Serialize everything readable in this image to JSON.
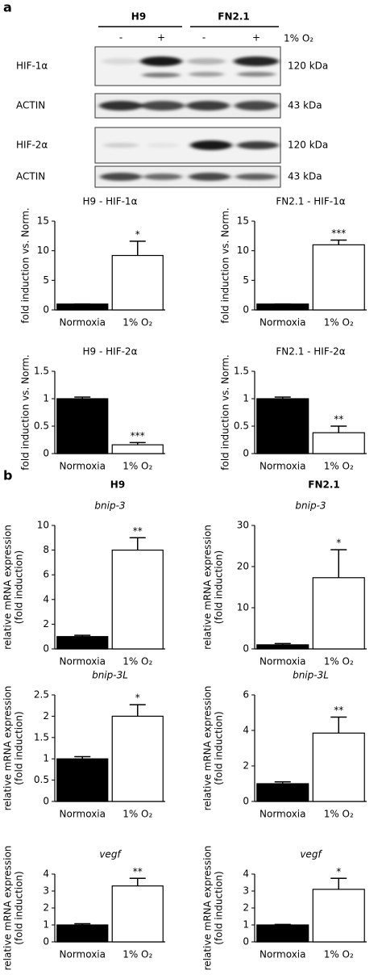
{
  "blot": {
    "panel_label": "a",
    "groups": [
      "H9",
      "FN2.1"
    ],
    "lanes": [
      "-",
      "+",
      "-",
      "+"
    ],
    "condition": "1% O₂",
    "rows": [
      {
        "label": "HIF-1α",
        "size": "120 kDa"
      },
      {
        "label": "ACTIN",
        "size": "43 kDa"
      },
      {
        "label": "HIF-2α",
        "size": "120 kDa"
      },
      {
        "label": "ACTIN",
        "size": "43 kDa"
      }
    ]
  },
  "panel_b": {
    "panel_label": "b",
    "columns": [
      "H9",
      "FN2.1"
    ]
  },
  "chart_data": [
    {
      "type": "bar",
      "title": "H9 - HIF-1α",
      "title_style": "normal",
      "ylabel": [
        "fold induction vs. Norm."
      ],
      "categories": [
        "Normoxia",
        "1% O₂"
      ],
      "values": [
        1,
        9.2
      ],
      "errors": [
        0,
        2.4
      ],
      "colors": [
        "#000000",
        "#ffffff"
      ],
      "annotation": "*",
      "ylim": [
        0,
        15
      ],
      "yticks": [
        0,
        5,
        10,
        15
      ]
    },
    {
      "type": "bar",
      "title": "FN2.1 - HIF-1α",
      "title_style": "normal",
      "ylabel": [
        "fold induction vs. Norm."
      ],
      "categories": [
        "Normoxia",
        "1% O₂"
      ],
      "values": [
        1,
        11
      ],
      "errors": [
        0,
        0.8
      ],
      "colors": [
        "#000000",
        "#ffffff"
      ],
      "annotation": "***",
      "ylim": [
        0,
        15
      ],
      "yticks": [
        0,
        5,
        10,
        15
      ]
    },
    {
      "type": "bar",
      "title": "H9 - HIF-2α",
      "title_style": "normal",
      "ylabel": [
        "fold induction vs. Norm."
      ],
      "categories": [
        "Normoxia",
        "1% O₂"
      ],
      "values": [
        1,
        0.16
      ],
      "errors": [
        0.03,
        0.04
      ],
      "colors": [
        "#000000",
        "#ffffff"
      ],
      "annotation": "***",
      "ylim": [
        0,
        1.5
      ],
      "yticks": [
        0,
        0.5,
        1,
        1.5
      ]
    },
    {
      "type": "bar",
      "title": "FN2.1 - HIF-2α",
      "title_style": "normal",
      "ylabel": [
        "fold induction vs. Norm."
      ],
      "categories": [
        "Normoxia",
        "1% O₂"
      ],
      "values": [
        1,
        0.38
      ],
      "errors": [
        0.03,
        0.12
      ],
      "colors": [
        "#000000",
        "#ffffff"
      ],
      "annotation": "**",
      "ylim": [
        0,
        1.5
      ],
      "yticks": [
        0,
        0.5,
        1,
        1.5
      ]
    },
    {
      "type": "bar",
      "title": "bnip-3",
      "title_style": "italic",
      "ylabel": [
        "relative mRNA expression",
        "(fold induction)"
      ],
      "categories": [
        "Normoxia",
        "1% O₂"
      ],
      "values": [
        1,
        8
      ],
      "errors": [
        0.1,
        1
      ],
      "colors": [
        "#000000",
        "#ffffff"
      ],
      "annotation": "**",
      "ylim": [
        0,
        10
      ],
      "yticks": [
        0,
        2,
        4,
        6,
        8,
        10
      ]
    },
    {
      "type": "bar",
      "title": "bnip-3",
      "title_style": "italic",
      "ylabel": [
        "relative mRNA expression",
        "(fold induction)"
      ],
      "categories": [
        "Normoxia",
        "1% O₂"
      ],
      "values": [
        1,
        17.3
      ],
      "errors": [
        0.3,
        6.8
      ],
      "colors": [
        "#000000",
        "#ffffff"
      ],
      "annotation": "*",
      "ylim": [
        0,
        30
      ],
      "yticks": [
        0,
        10,
        20,
        30
      ]
    },
    {
      "type": "bar",
      "title": "bnip-3L",
      "title_style": "italic",
      "ylabel": [
        "relative mRNA expression",
        "(fold induction)"
      ],
      "categories": [
        "Normoxia",
        "1% O₂"
      ],
      "values": [
        1,
        2
      ],
      "errors": [
        0.05,
        0.27
      ],
      "colors": [
        "#000000",
        "#ffffff"
      ],
      "annotation": "*",
      "ylim": [
        0,
        2.5
      ],
      "yticks": [
        0,
        0.5,
        1,
        1.5,
        2,
        2.5
      ]
    },
    {
      "type": "bar",
      "title": "bnip-3L",
      "title_style": "italic",
      "ylabel": [
        "relative mRNA expression",
        "(fold induction)"
      ],
      "categories": [
        "Normoxia",
        "1% O₂"
      ],
      "values": [
        1,
        3.85
      ],
      "errors": [
        0.1,
        0.9
      ],
      "colors": [
        "#000000",
        "#ffffff"
      ],
      "annotation": "**",
      "ylim": [
        0,
        6
      ],
      "yticks": [
        0,
        2,
        4,
        6
      ]
    },
    {
      "type": "bar",
      "title": "vegf",
      "title_style": "italic",
      "ylabel": [
        "relative mRNA expression",
        "(fold induction)"
      ],
      "categories": [
        "Normoxia",
        "1% O₂"
      ],
      "values": [
        1,
        3.3
      ],
      "errors": [
        0.07,
        0.45
      ],
      "colors": [
        "#000000",
        "#ffffff"
      ],
      "annotation": "**",
      "ylim": [
        0,
        4
      ],
      "yticks": [
        0,
        1,
        2,
        3,
        4
      ]
    },
    {
      "type": "bar",
      "title": "vegf",
      "title_style": "italic",
      "ylabel": [
        "relative mRNA expression",
        "(fold induction)"
      ],
      "categories": [
        "Normoxia",
        "1% O₂"
      ],
      "values": [
        1,
        3.1
      ],
      "errors": [
        0.03,
        0.65
      ],
      "colors": [
        "#000000",
        "#ffffff"
      ],
      "annotation": "*",
      "ylim": [
        0,
        4
      ],
      "yticks": [
        0,
        1,
        2,
        3,
        4
      ]
    }
  ]
}
